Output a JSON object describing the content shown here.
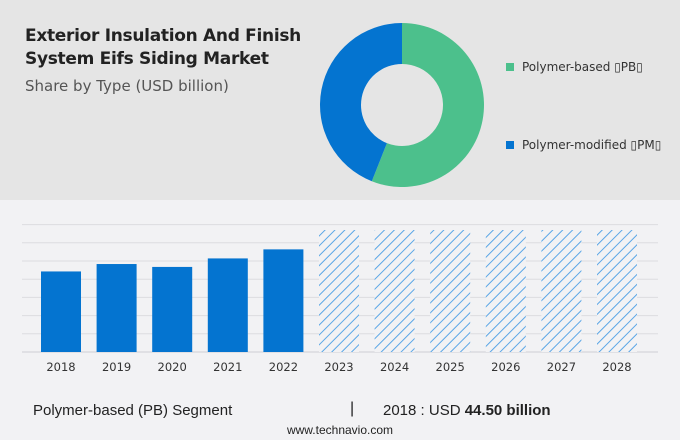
{
  "title": "Exterior Insulation And Finish System Eifs Siding Market",
  "subtitle": "Share by Type (USD billion)",
  "colors": {
    "polymer_based": "#4cc08c",
    "polymer_modified": "#0474d0",
    "forecast_hatch": "#5aa6e6"
  },
  "legend": [
    {
      "label": "Polymer-based ▯PB▯",
      "color": "#4cc08c"
    },
    {
      "label": "Polymer-modified ▯PM▯",
      "color": "#0474d0"
    }
  ],
  "chart_data": [
    {
      "type": "pie",
      "style": "donut",
      "slices": [
        {
          "label": "Polymer-based (PB)",
          "share_percent": 56
        },
        {
          "label": "Polymer-modified (PM)",
          "share_percent": 44
        }
      ]
    },
    {
      "type": "bar",
      "categories": [
        "2018",
        "2019",
        "2020",
        "2021",
        "2022",
        "2023",
        "2024",
        "2025",
        "2026",
        "2027",
        "2028"
      ],
      "values": [
        44.5,
        48.6,
        47.0,
        51.7,
        56.7,
        null,
        null,
        null,
        null,
        null,
        null
      ],
      "forecast": [
        false,
        false,
        false,
        false,
        false,
        true,
        true,
        true,
        true,
        true,
        true
      ],
      "ylim": [
        0,
        67.4
      ],
      "grid": true,
      "xlabel": "",
      "ylabel": ""
    }
  ],
  "footer": {
    "segment": "Polymer-based (PB) Segment",
    "separator": "|",
    "value_prefix": "2018 : USD ",
    "value_bold": "44.50 billion",
    "url": "www.technavio.com"
  }
}
